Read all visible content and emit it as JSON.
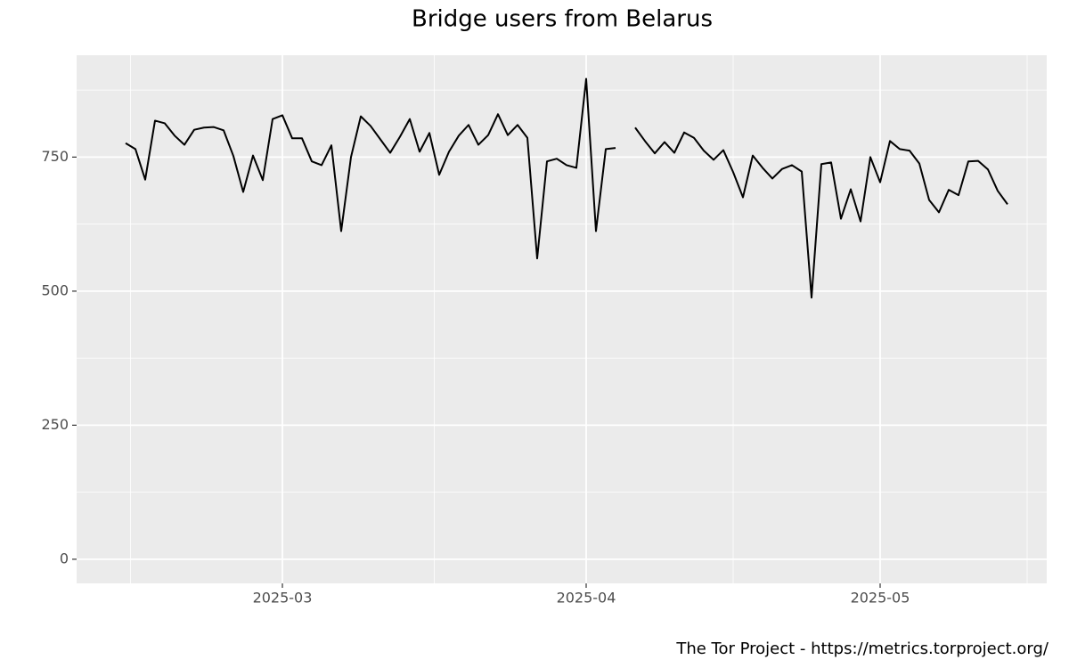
{
  "chart_data": {
    "type": "line",
    "title": "Bridge users from Belarus",
    "caption": "The Tor Project - https://metrics.torproject.org/",
    "x": [
      "2025-02-13",
      "2025-02-14",
      "2025-02-15",
      "2025-02-16",
      "2025-02-17",
      "2025-02-18",
      "2025-02-19",
      "2025-02-20",
      "2025-02-21",
      "2025-02-22",
      "2025-02-23",
      "2025-02-24",
      "2025-02-25",
      "2025-02-26",
      "2025-02-27",
      "2025-02-28",
      "2025-03-01",
      "2025-03-02",
      "2025-03-03",
      "2025-03-04",
      "2025-03-05",
      "2025-03-06",
      "2025-03-07",
      "2025-03-08",
      "2025-03-09",
      "2025-03-10",
      "2025-03-11",
      "2025-03-12",
      "2025-03-13",
      "2025-03-14",
      "2025-03-15",
      "2025-03-16",
      "2025-03-17",
      "2025-03-18",
      "2025-03-19",
      "2025-03-20",
      "2025-03-21",
      "2025-03-22",
      "2025-03-23",
      "2025-03-24",
      "2025-03-25",
      "2025-03-26",
      "2025-03-27",
      "2025-03-28",
      "2025-03-29",
      "2025-03-30",
      "2025-03-31",
      "2025-04-01",
      "2025-04-02",
      "2025-04-03",
      "2025-04-04",
      "2025-04-05",
      "2025-04-06",
      "2025-04-07",
      "2025-04-08",
      "2025-04-09",
      "2025-04-10",
      "2025-04-11",
      "2025-04-12",
      "2025-04-13",
      "2025-04-14",
      "2025-04-15",
      "2025-04-16",
      "2025-04-17",
      "2025-04-18",
      "2025-04-19",
      "2025-04-20",
      "2025-04-21",
      "2025-04-22",
      "2025-04-23",
      "2025-04-24",
      "2025-04-25",
      "2025-04-26",
      "2025-04-27",
      "2025-04-28",
      "2025-04-29",
      "2025-04-30",
      "2025-05-01",
      "2025-05-02",
      "2025-05-03",
      "2025-05-04",
      "2025-05-05",
      "2025-05-06",
      "2025-05-07",
      "2025-05-08",
      "2025-05-09",
      "2025-05-10",
      "2025-05-11",
      "2025-05-12",
      "2025-05-13",
      "2025-05-14"
    ],
    "series": [
      {
        "name": "Belarus",
        "color": "#000000",
        "values": [
          776,
          765,
          708,
          818,
          813,
          790,
          773,
          801,
          805,
          806,
          800,
          752,
          685,
          753,
          707,
          821,
          828,
          785,
          785,
          742,
          735,
          772,
          612,
          750,
          826,
          808,
          783,
          758,
          788,
          821,
          760,
          795,
          717,
          760,
          790,
          810,
          773,
          791,
          830,
          791,
          810,
          786,
          561,
          742,
          747,
          735,
          730,
          896,
          612,
          765,
          767,
          null,
          805,
          780,
          757,
          778,
          758,
          796,
          786,
          762,
          745,
          763,
          722,
          675,
          753,
          730,
          710,
          728,
          735,
          723,
          488,
          737,
          740,
          635,
          690,
          630,
          750,
          703,
          780,
          765,
          762,
          738,
          670,
          647,
          689,
          679,
          742,
          743,
          727,
          687,
          662
        ]
      }
    ],
    "xlim": [
      "2025-02-08",
      "2025-05-18"
    ],
    "xticks": [
      {
        "value": "2025-03-01",
        "label": "2025-03"
      },
      {
        "value": "2025-04-01",
        "label": "2025-04"
      },
      {
        "value": "2025-05-01",
        "label": "2025-05"
      }
    ],
    "ylim": [
      -45,
      940
    ],
    "yticks": [
      0,
      250,
      500,
      750
    ],
    "grid": true
  }
}
